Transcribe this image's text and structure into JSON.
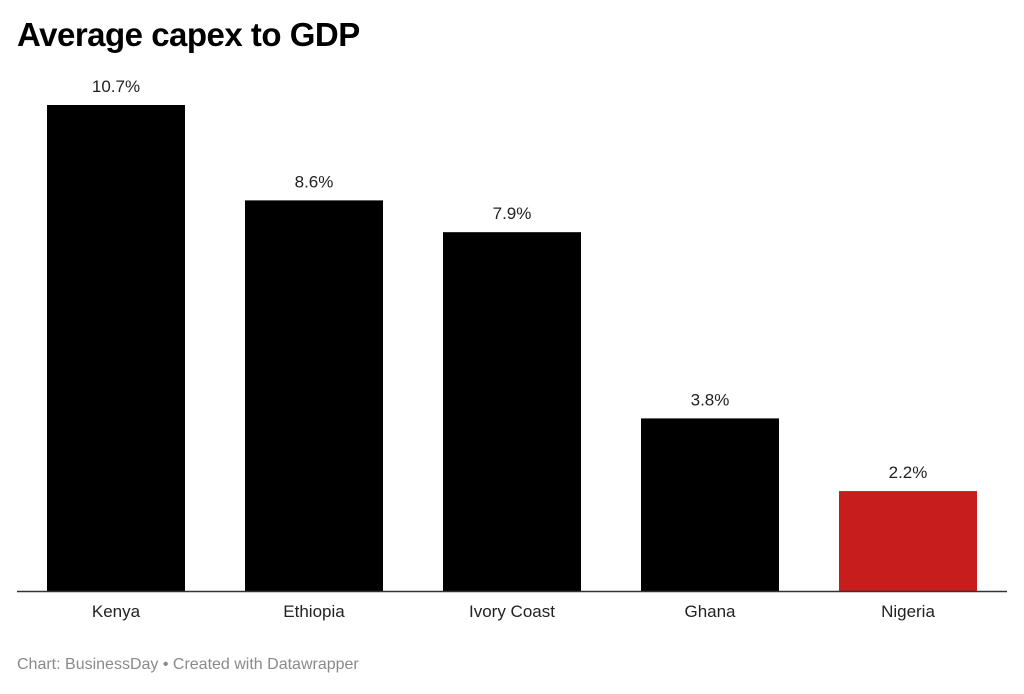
{
  "chart_data": {
    "type": "bar",
    "title": "Average capex to GDP",
    "categories": [
      "Kenya",
      "Ethiopia",
      "Ivory Coast",
      "Ghana",
      "Nigeria"
    ],
    "values": [
      10.7,
      8.6,
      7.9,
      3.8,
      2.2
    ],
    "value_labels": [
      "10.7%",
      "8.6%",
      "7.9%",
      "3.8%",
      "2.2%"
    ],
    "colors": [
      "#000000",
      "#000000",
      "#000000",
      "#000000",
      "#c71e1d"
    ],
    "ylim": [
      0,
      10.7
    ],
    "grid": false,
    "xlabel": "",
    "ylabel": ""
  },
  "footer": "Chart: BusinessDay • Created with Datawrapper"
}
